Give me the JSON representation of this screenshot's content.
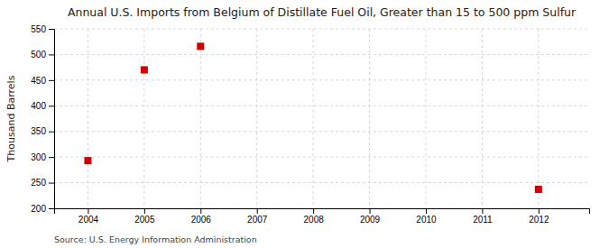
{
  "chart_data": {
    "type": "scatter",
    "title": "Annual U.S. Imports from Belgium of Distillate Fuel Oil, Greater than 15 to 500 ppm Sulfur",
    "ylabel": "Thousand Barrels",
    "source": "Source: U.S. Energy Information Administration",
    "x": [
      2004,
      2005,
      2006,
      2012
    ],
    "values": [
      293,
      470,
      516,
      237
    ],
    "color": "#cc0000",
    "marker": "square",
    "xlim": [
      2003.4,
      2012.9
    ],
    "ylim": [
      200,
      550
    ],
    "xticks": [
      2004,
      2005,
      2006,
      2007,
      2008,
      2009,
      2010,
      2011,
      2012
    ],
    "yticks": [
      200,
      250,
      300,
      350,
      400,
      450,
      500,
      550
    ],
    "grid": true
  }
}
